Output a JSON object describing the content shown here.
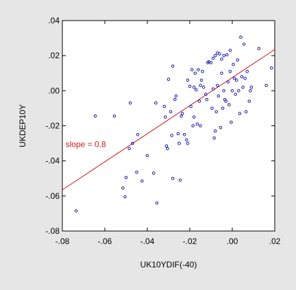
{
  "chart_data": {
    "type": "scatter",
    "xlabel": "UK10YDIF(-40)",
    "ylabel": "UKDEP10Y",
    "xlim": [
      -0.08,
      0.02
    ],
    "ylim": [
      -0.08,
      0.04
    ],
    "x_ticks": [
      -0.08,
      -0.06,
      -0.04,
      -0.02,
      0.0,
      0.02
    ],
    "x_tick_labels": [
      "-.08",
      "-.06",
      "-.04",
      "-.02",
      ".00",
      ".02"
    ],
    "y_ticks": [
      -0.08,
      -0.06,
      -0.04,
      -0.02,
      0.0,
      0.02,
      0.04
    ],
    "y_tick_labels": [
      "-.08",
      "-.06",
      "-.04",
      "-.02",
      ".00",
      ".02",
      ".04"
    ],
    "grid": false,
    "legend": "none",
    "colors": {
      "points": "#1a1aa8",
      "fit_line": "#cc1a1a",
      "annotation": "#cc1a1a",
      "plot_bg": "#ffffff"
    },
    "annotation": {
      "text": "slope = 0.8",
      "x": -0.0785,
      "y": -0.0305
    },
    "fit_line": {
      "slope": 0.8,
      "intercept": 0.0075
    },
    "points": [
      [
        -0.0735,
        -0.0685
      ],
      [
        -0.0645,
        -0.0145
      ],
      [
        -0.0555,
        -0.0145
      ],
      [
        -0.0515,
        -0.0555
      ],
      [
        -0.0505,
        -0.0605
      ],
      [
        -0.05,
        -0.0495
      ],
      [
        -0.0485,
        -0.033
      ],
      [
        -0.047,
        -0.03
      ],
      [
        -0.048,
        -0.007
      ],
      [
        -0.045,
        -0.0465
      ],
      [
        -0.0445,
        -0.025
      ],
      [
        -0.0425,
        -0.0515
      ],
      [
        -0.04,
        -0.037
      ],
      [
        -0.037,
        -0.047
      ],
      [
        -0.036,
        -0.007
      ],
      [
        -0.0355,
        -0.064
      ],
      [
        -0.032,
        -0.009
      ],
      [
        -0.0315,
        -0.015
      ],
      [
        -0.031,
        -0.0315
      ],
      [
        -0.0305,
        -0.033
      ],
      [
        -0.03,
        0.0065
      ],
      [
        -0.029,
        -0.012
      ],
      [
        -0.0285,
        -0.0255
      ],
      [
        -0.028,
        -0.05
      ],
      [
        -0.028,
        0.014
      ],
      [
        -0.027,
        -0.005
      ],
      [
        -0.0265,
        -0.003
      ],
      [
        -0.0255,
        -0.0245
      ],
      [
        -0.025,
        -0.03
      ],
      [
        -0.0245,
        -0.051
      ],
      [
        -0.024,
        -0.0145
      ],
      [
        -0.0235,
        -0.013
      ],
      [
        -0.0225,
        -0.025
      ],
      [
        -0.0215,
        -0.028
      ],
      [
        -0.021,
        -0.03
      ],
      [
        -0.021,
        0.006
      ],
      [
        -0.02,
        0.0025
      ],
      [
        -0.0195,
        -0.009
      ],
      [
        -0.019,
        0.012
      ],
      [
        -0.0185,
        -0.02
      ],
      [
        -0.018,
        0.002
      ],
      [
        -0.018,
        -0.015
      ],
      [
        -0.0175,
        0.01
      ],
      [
        -0.017,
        0.0005
      ],
      [
        -0.0165,
        -0.019
      ],
      [
        -0.016,
        0.012
      ],
      [
        -0.0155,
        -0.006
      ],
      [
        -0.015,
        0.003
      ],
      [
        -0.015,
        -0.02
      ],
      [
        -0.0145,
        0.006
      ],
      [
        -0.014,
        0.011
      ],
      [
        -0.0135,
        0.002
      ],
      [
        -0.0125,
        -0.002
      ],
      [
        -0.012,
        -0.005
      ],
      [
        -0.0115,
        0.016
      ],
      [
        -0.011,
        0.0165
      ],
      [
        -0.01,
        0.016
      ],
      [
        -0.0095,
        -0.01
      ],
      [
        -0.009,
        0.0185
      ],
      [
        -0.009,
        0.001
      ],
      [
        -0.0085,
        -0.027
      ],
      [
        -0.008,
        -0.023
      ],
      [
        -0.008,
        0.02
      ],
      [
        -0.0075,
        -0.012
      ],
      [
        -0.007,
        0.0215
      ],
      [
        -0.007,
        0.003
      ],
      [
        -0.0065,
        -0.003
      ],
      [
        -0.006,
        0.021
      ],
      [
        -0.0055,
        -0.021
      ],
      [
        -0.005,
        0.01
      ],
      [
        -0.005,
        0.018
      ],
      [
        -0.0045,
        -0.01
      ],
      [
        -0.004,
        0.02
      ],
      [
        -0.004,
        0.0
      ],
      [
        -0.0035,
        -0.005
      ],
      [
        -0.003,
        -0.006
      ],
      [
        -0.0025,
        0.0205
      ],
      [
        -0.002,
        0.005
      ],
      [
        -0.0015,
        -0.008
      ],
      [
        -0.001,
        0.011
      ],
      [
        -0.001,
        0.023
      ],
      [
        -0.0005,
        -0.018
      ],
      [
        0.0,
        0.0
      ],
      [
        0.0005,
        0.015
      ],
      [
        0.001,
        0.007
      ],
      [
        0.0015,
        -0.002
      ],
      [
        0.002,
        0.006
      ],
      [
        0.0025,
        0.0175
      ],
      [
        0.003,
        0.0
      ],
      [
        0.0035,
        -0.013
      ],
      [
        0.004,
        0.0305
      ],
      [
        0.0045,
        0.008
      ],
      [
        0.005,
        0.002
      ],
      [
        0.0055,
        0.0265
      ],
      [
        0.006,
        0.007
      ],
      [
        0.0065,
        -0.012
      ],
      [
        0.007,
        0.011
      ],
      [
        0.008,
        -0.006
      ],
      [
        0.0085,
        0.0
      ],
      [
        0.009,
        0.002
      ],
      [
        0.0125,
        0.024
      ],
      [
        0.016,
        0.003
      ],
      [
        0.0185,
        0.013
      ]
    ]
  }
}
